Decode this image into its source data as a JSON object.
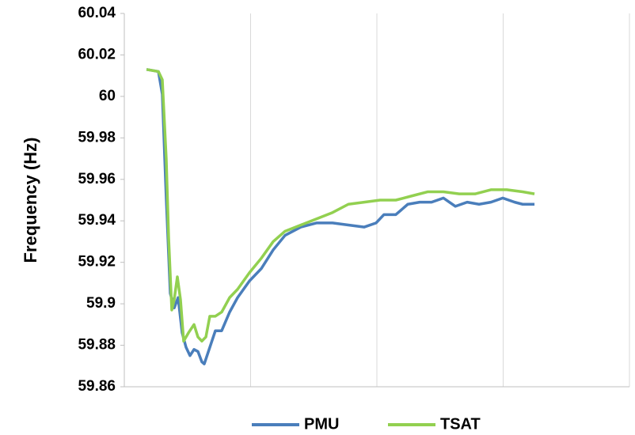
{
  "chart_data": {
    "type": "line",
    "y_label": "Frequency (Hz)",
    "ylim": [
      59.86,
      60.04
    ],
    "yticks": [
      59.86,
      59.88,
      59.9,
      59.92,
      59.94,
      59.96,
      59.98,
      60,
      60.02,
      60.04
    ],
    "xlim": [
      0,
      4
    ],
    "xticks": [
      0,
      1,
      2,
      3,
      4
    ],
    "grid": "x",
    "legend": "bottom",
    "series": [
      {
        "name": "PMU",
        "color": "#4a7ebb",
        "x": [
          0.176,
          0.27,
          0.301,
          0.332,
          0.364,
          0.395,
          0.426,
          0.458,
          0.489,
          0.52,
          0.552,
          0.583,
          0.614,
          0.633,
          0.677,
          0.721,
          0.771,
          0.834,
          0.897,
          0.991,
          1.085,
          1.179,
          1.273,
          1.398,
          1.524,
          1.649,
          1.774,
          1.9,
          1.994,
          2.056,
          2.15,
          2.245,
          2.339,
          2.433,
          2.527,
          2.621,
          2.715,
          2.809,
          2.903,
          2.997,
          3.091,
          3.154,
          3.248
        ],
        "values": [
          60.013,
          60.012,
          60.001,
          59.951,
          59.905,
          59.898,
          59.903,
          59.886,
          59.879,
          59.875,
          59.878,
          59.877,
          59.872,
          59.871,
          59.879,
          59.887,
          59.887,
          59.896,
          59.903,
          59.911,
          59.917,
          59.926,
          59.933,
          59.937,
          59.939,
          59.939,
          59.938,
          59.937,
          59.939,
          59.943,
          59.943,
          59.948,
          59.949,
          59.949,
          59.951,
          59.947,
          59.949,
          59.948,
          59.949,
          59.951,
          59.949,
          59.948,
          59.948
        ]
      },
      {
        "name": "TSAT",
        "color": "#92d050",
        "x": [
          0.176,
          0.27,
          0.301,
          0.332,
          0.351,
          0.376,
          0.395,
          0.42,
          0.445,
          0.47,
          0.508,
          0.552,
          0.583,
          0.614,
          0.646,
          0.677,
          0.721,
          0.771,
          0.834,
          0.897,
          0.991,
          1.085,
          1.179,
          1.273,
          1.398,
          1.524,
          1.649,
          1.774,
          1.9,
          2.025,
          2.15,
          2.276,
          2.401,
          2.527,
          2.652,
          2.777,
          2.903,
          3.028,
          3.154,
          3.248
        ],
        "values": [
          60.013,
          60.012,
          60.008,
          59.97,
          59.932,
          59.897,
          59.902,
          59.913,
          59.902,
          59.882,
          59.886,
          59.89,
          59.884,
          59.882,
          59.884,
          59.894,
          59.894,
          59.896,
          59.903,
          59.907,
          59.915,
          59.922,
          59.93,
          59.935,
          59.938,
          59.941,
          59.944,
          59.948,
          59.949,
          59.95,
          59.95,
          59.952,
          59.954,
          59.954,
          59.953,
          59.953,
          59.955,
          59.955,
          59.954,
          59.953
        ]
      }
    ]
  }
}
